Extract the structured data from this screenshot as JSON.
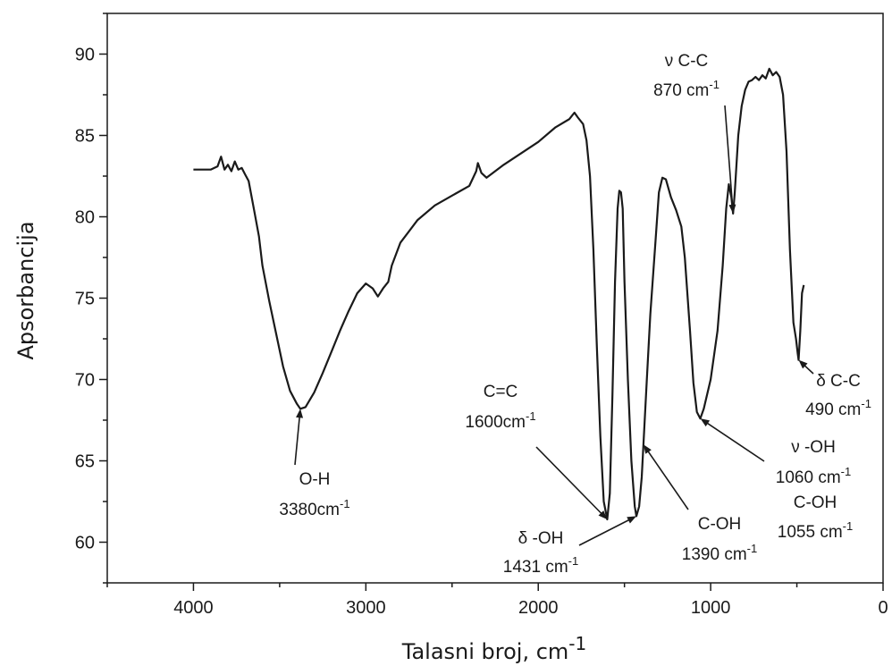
{
  "chart_data": {
    "type": "line",
    "xlabel": "Talasni broj, cm",
    "xlabel_sup": "-1",
    "ylabel": "Apsorbancija",
    "xlim": [
      4500,
      0
    ],
    "ylim": [
      57.5,
      92.5
    ],
    "x_ticks": [
      4000,
      3000,
      2000,
      1000,
      0
    ],
    "x_tick_labels": [
      "4000",
      "3000",
      "2000",
      "1000",
      "0"
    ],
    "y_ticks": [
      60,
      65,
      70,
      75,
      80,
      85,
      90
    ],
    "y_tick_labels": [
      "60",
      "65",
      "70",
      "75",
      "80",
      "85",
      "90"
    ],
    "grid": false,
    "series": [
      {
        "color": "#1a1a1a",
        "points": [
          [
            4000,
            82.9
          ],
          [
            3900,
            82.9
          ],
          [
            3860,
            83.1
          ],
          [
            3840,
            83.7
          ],
          [
            3820,
            82.9
          ],
          [
            3800,
            83.2
          ],
          [
            3780,
            82.8
          ],
          [
            3760,
            83.4
          ],
          [
            3740,
            82.9
          ],
          [
            3720,
            83.0
          ],
          [
            3700,
            82.6
          ],
          [
            3680,
            82.2
          ],
          [
            3650,
            80.5
          ],
          [
            3620,
            78.8
          ],
          [
            3600,
            77.0
          ],
          [
            3560,
            74.8
          ],
          [
            3520,
            72.8
          ],
          [
            3480,
            70.8
          ],
          [
            3440,
            69.3
          ],
          [
            3400,
            68.5
          ],
          [
            3380,
            68.2
          ],
          [
            3350,
            68.3
          ],
          [
            3300,
            69.2
          ],
          [
            3250,
            70.4
          ],
          [
            3200,
            71.7
          ],
          [
            3150,
            73.0
          ],
          [
            3100,
            74.2
          ],
          [
            3050,
            75.3
          ],
          [
            3000,
            75.9
          ],
          [
            2960,
            75.6
          ],
          [
            2930,
            75.1
          ],
          [
            2900,
            75.6
          ],
          [
            2870,
            76.0
          ],
          [
            2850,
            77.0
          ],
          [
            2800,
            78.4
          ],
          [
            2700,
            79.8
          ],
          [
            2600,
            80.7
          ],
          [
            2500,
            81.3
          ],
          [
            2400,
            81.9
          ],
          [
            2360,
            82.8
          ],
          [
            2350,
            83.3
          ],
          [
            2330,
            82.7
          ],
          [
            2300,
            82.4
          ],
          [
            2200,
            83.2
          ],
          [
            2000,
            84.6
          ],
          [
            1900,
            85.5
          ],
          [
            1820,
            86.0
          ],
          [
            1790,
            86.4
          ],
          [
            1770,
            86.1
          ],
          [
            1740,
            85.7
          ],
          [
            1720,
            84.7
          ],
          [
            1700,
            82.5
          ],
          [
            1680,
            78.0
          ],
          [
            1660,
            72.0
          ],
          [
            1640,
            66.5
          ],
          [
            1620,
            62.5
          ],
          [
            1600,
            61.4
          ],
          [
            1585,
            63.0
          ],
          [
            1570,
            69.0
          ],
          [
            1555,
            76.0
          ],
          [
            1540,
            80.5
          ],
          [
            1530,
            81.6
          ],
          [
            1520,
            81.5
          ],
          [
            1510,
            80.5
          ],
          [
            1500,
            76.0
          ],
          [
            1480,
            70.0
          ],
          [
            1460,
            65.0
          ],
          [
            1440,
            62.2
          ],
          [
            1431,
            61.6
          ],
          [
            1415,
            62.2
          ],
          [
            1400,
            64.0
          ],
          [
            1390,
            66.0
          ],
          [
            1370,
            70.0
          ],
          [
            1350,
            74.0
          ],
          [
            1320,
            78.5
          ],
          [
            1300,
            81.5
          ],
          [
            1280,
            82.4
          ],
          [
            1260,
            82.3
          ],
          [
            1230,
            81.2
          ],
          [
            1200,
            80.4
          ],
          [
            1170,
            79.4
          ],
          [
            1150,
            77.5
          ],
          [
            1120,
            73.0
          ],
          [
            1100,
            69.8
          ],
          [
            1080,
            68.0
          ],
          [
            1060,
            67.6
          ],
          [
            1040,
            68.2
          ],
          [
            1000,
            70.0
          ],
          [
            960,
            73.0
          ],
          [
            930,
            77.0
          ],
          [
            910,
            80.5
          ],
          [
            895,
            82.0
          ],
          [
            880,
            81.2
          ],
          [
            870,
            80.2
          ],
          [
            860,
            81.5
          ],
          [
            840,
            85.0
          ],
          [
            820,
            86.8
          ],
          [
            800,
            87.8
          ],
          [
            780,
            88.3
          ],
          [
            760,
            88.4
          ],
          [
            740,
            88.6
          ],
          [
            720,
            88.4
          ],
          [
            700,
            88.7
          ],
          [
            680,
            88.5
          ],
          [
            660,
            89.1
          ],
          [
            640,
            88.7
          ],
          [
            620,
            88.9
          ],
          [
            600,
            88.6
          ],
          [
            580,
            87.5
          ],
          [
            560,
            84.0
          ],
          [
            540,
            78.0
          ],
          [
            520,
            73.5
          ],
          [
            505,
            72.5
          ],
          [
            495,
            71.6
          ],
          [
            490,
            71.2
          ],
          [
            480,
            73.0
          ],
          [
            470,
            75.3
          ],
          [
            460,
            75.8
          ]
        ]
      }
    ],
    "annotations": [
      {
        "lines": [
          "O-H",
          "3380cm"
        ],
        "sup": "-1",
        "arrow_x": 3380,
        "arrow_y": 68.2
      },
      {
        "lines": [
          "C=C",
          "1600cm"
        ],
        "sup": "-1",
        "arrow_x": 1600,
        "arrow_y": 61.4
      },
      {
        "lines": [
          "δ -OH",
          "1431 cm"
        ],
        "sup": "-1",
        "arrow_x": 1431,
        "arrow_y": 61.6
      },
      {
        "lines": [
          "C-OH",
          "1390 cm"
        ],
        "sup": "-1",
        "arrow_x": 1390,
        "arrow_y": 66.0
      },
      {
        "lines": [
          "ν C-C",
          "870 cm"
        ],
        "sup": "-1",
        "arrow_x": 870,
        "arrow_y": 80.2
      },
      {
        "lines": [
          "ν -OH",
          "1060 cm"
        ],
        "sup": "-1",
        "arrow_x": 1060,
        "arrow_y": 67.6
      },
      {
        "lines": [
          "C-OH",
          "1055 cm"
        ],
        "sup": "-1"
      },
      {
        "lines": [
          "δ C-C",
          "490 cm"
        ],
        "sup": "-1",
        "arrow_x": 490,
        "arrow_y": 71.2
      }
    ]
  }
}
